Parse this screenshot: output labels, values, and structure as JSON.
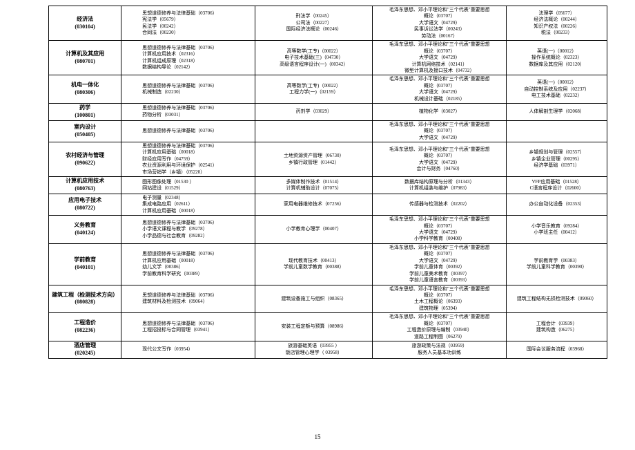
{
  "page_number": "15",
  "colwidths": [
    "13%",
    "24%",
    "21%",
    "24%",
    "18%"
  ],
  "rows": [
    {
      "major": {
        "name": "经济法",
        "code": "(030104)"
      },
      "c2": [
        "思想道德修养与法律基础（03706）",
        "宪法学（05679）",
        "民法学（00242）",
        "合同法（00230）"
      ],
      "c3": [
        "刑法学（00245）",
        "公司法（00227）",
        "国际经济法概论（00246）"
      ],
      "c4": [
        "毛泽东思想、邓小平理论和\"三个代表\"重要思想",
        "概论（03707）",
        "大学语文（04729）",
        "民事诉讼法学（00243）",
        "劳动法（00167）"
      ],
      "c5": [
        "法理学（05677）",
        "经济法概论（00244）",
        "知识产权法（00226）",
        "税法（00233）"
      ]
    },
    {
      "major": {
        "name": "计算机及其应用",
        "code": "(080701)"
      },
      "c2": [
        "思想道德修养与法律基础（03706）",
        "计算机应用技术（02316）",
        "计算机组成原理（02318）",
        "数据结构导论（02142）"
      ],
      "c3": [
        "高等数学(工专)（00022）",
        "电子技术基础(三)（04730）",
        "高级语言程序设计(一)（00342）"
      ],
      "c4": [
        "毛泽东思想、邓小平理论和\"三个代表\"重要思想",
        "概论（03707）",
        "大学语文（04729）",
        "计算机网络技术（02141）",
        "微型计算机及接口技术（04732）"
      ],
      "c5": [
        "英语(一)（00012）",
        "操作系统概论（02323）",
        "数据库及其应用（02120）"
      ]
    },
    {
      "major": {
        "name": "机电一体化",
        "code": "(080306)"
      },
      "c2": [
        "思想道德修养与法律基础（03706）",
        "机械制造（02230）"
      ],
      "c3": [
        "高等数学(工专)（00022）",
        "工程力学(一)（02159）"
      ],
      "c4": [
        "毛泽东思想、邓小平理论和\"三个代表\"重要思想",
        "概论（03707）",
        "大学语文（04729）",
        "机械设计基础（02185）"
      ],
      "c5": [
        "英语(一)（00012）",
        "自动控制系统及应用（02237）",
        "电工技术基础（02232）"
      ]
    },
    {
      "major": {
        "name": "药学",
        "code": "(100801)"
      },
      "c2": [
        "思想道德修养与法律基础（03706）",
        "药物分析（03031）"
      ],
      "c3": [
        "药剂学（03029）"
      ],
      "c4": [
        "植物化学（03027）"
      ],
      "c5": [
        "人体解剖生理学（02068）"
      ]
    },
    {
      "major": {
        "name": "室内设计",
        "code": "(050405)"
      },
      "c2": [
        "思想道德修养与法律基础（03706）"
      ],
      "c3": [],
      "c4": [
        "毛泽东思想、邓小平理论和\"三个代表\"重要思想",
        "概论（03707）",
        "大学语文（04729）"
      ],
      "c5": []
    },
    {
      "major": {
        "name": "农村经济与管理",
        "code": "(090622)"
      },
      "c2": [
        "思想道德修养与法律基础（03706）",
        "计算机应用基础（00018）",
        "财经应用写作（04759）",
        "农业资源利用与环境保护（02541）",
        "市场营销学（乡镇）（05220）"
      ],
      "c3": [
        "土地资源资产管理（06730）",
        "乡镇行政管理（01442）"
      ],
      "c4": [
        "毛泽东思想、邓小平理论和\"三个代表\"重要思想",
        "概论（03707）",
        "大学语文（04729）",
        "会计与财务（04760）"
      ],
      "c5": [
        "乡镇规划与管理（02557）",
        "乡镇企业管理（00295）",
        "经济学基础（03971）"
      ]
    },
    {
      "major": {
        "name": "计算机应用技术",
        "code": "(080763)"
      },
      "c2": [
        "图形图像处理（01530 ）",
        "网站建设（01529）"
      ],
      "c3": [
        "多媒体制作技术（01514）",
        "计算机辅助设计（07075）"
      ],
      "c4": [
        "数据库结构原理与分析（01343）",
        "计算机组装与维护（07983）"
      ],
      "c5": [
        "VFP应用基础（01528）",
        "C语言程序设计（02600）"
      ]
    },
    {
      "major": {
        "name": "应用电子技术",
        "code": "(080722)"
      },
      "c2": [
        "电子测量（02348）",
        "集成电路应用（02611）",
        "计算机应用基础（00018）"
      ],
      "c3": [
        "家用电器维修技术（07256）"
      ],
      "c4": [
        "传感器与检测技术（02202）"
      ],
      "c5": [
        "办公自动化设备（02353）"
      ]
    },
    {
      "major": {
        "name": "义务教育",
        "code": "(040124)"
      },
      "c2": [
        "思想道德修养与法律基础（03706）",
        "小学语文课程与教学（09278）",
        "小学品德与社会教育（09282）"
      ],
      "c3": [
        "小学教育心理学（00407）"
      ],
      "c4": [
        "毛泽东思想、邓小平理论和\"三个代表\"重要思想",
        "概论（03707）",
        "大学语文（04729）",
        "小学科学教育（00408）"
      ],
      "c5": [
        "小学音乐教育（09284）",
        "小学班主任（00412）"
      ]
    },
    {
      "major": {
        "name": "学前教育",
        "code": "(040101)"
      },
      "c2": [
        "思想道德修养与法律基础（03706）",
        "计算机应用基础（00018）",
        "幼儿文学（00386）",
        "学前教育科学研究（00389）"
      ],
      "c3": [
        "现代教育技术（00413）",
        "学前儿童数学教育（00388）"
      ],
      "c4": [
        "毛泽东思想、邓小平理论和\"三个代表\"重要思想",
        "概论（03707）",
        "大学语文（04729）",
        "学前儿童体育（00392）",
        "学前儿童美术教育（00397）",
        "学前儿童语言教育（00393）"
      ],
      "c5": [
        "学前教育学（00383）",
        "学前儿童科学教育（00390）"
      ]
    },
    {
      "major": {
        "name": "建筑工程（检测技术方向）",
        "code": "(080828)"
      },
      "c2": [
        "思想道德修养与法律基础（03706）",
        "建筑材料及检测技术（09064）"
      ],
      "c3": [
        "建筑设备施工与组织（08365）"
      ],
      "c4": [
        "毛泽东思想、邓小平理论和\"三个代表\"重要思想",
        "概论（03707）",
        "土木工程概论（06393）",
        "建筑物理（05394）"
      ],
      "c5": [
        "建筑工程结构无损检测技术（09060）"
      ]
    },
    {
      "major": {
        "name": "工程造价",
        "code": "(082236)"
      },
      "c2": [
        "思想道德修养与法律基础（03706）",
        "工程招投标与合同管理（03941）"
      ],
      "c3": [
        "安装工程定额与预算（08986）"
      ],
      "c4": [
        "毛泽东思想、邓小平理论和\"三个代表\"重要思想",
        "概论（03707）",
        "工程造价原理与编制（03940）",
        "道路工程制图（06279）"
      ],
      "c5": [
        "工程会计（03939）",
        "建筑构造（06275）"
      ]
    },
    {
      "major": {
        "name": "酒店管理",
        "code": "(020245)"
      },
      "c2": [
        "现代公文写作（03954）"
      ],
      "c3": [
        "旅游基础英语（03955 ）",
        "饭店管理心理学（ 03958）"
      ],
      "c4": [
        "旅游政策与法规（03959）",
        "服务人员基本功训练"
      ],
      "c5": [
        "国际会议服务流程（03968）"
      ]
    }
  ]
}
